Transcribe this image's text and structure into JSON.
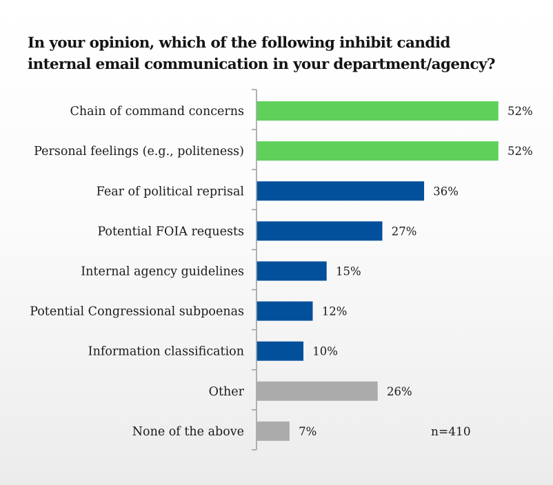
{
  "chart_data": {
    "type": "bar",
    "orientation": "horizontal",
    "title": "In your opinion, which of the following inhibit candid internal email communication in your department/agency?",
    "title_lines": [
      "In your opinion, which of the following inhibit candid",
      "internal email communication in your department/agency?"
    ],
    "categories": [
      "Chain of command concerns",
      "Personal feelings (e.g., politeness)",
      "Fear of political reprisal",
      "Potential FOIA requests",
      "Internal agency guidelines",
      "Potential Congressional subpoenas",
      "Information classification",
      "Other",
      "None of the above"
    ],
    "values": [
      52,
      52,
      36,
      27,
      15,
      12,
      10,
      26,
      7
    ],
    "value_labels": [
      "52%",
      "52%",
      "36%",
      "27%",
      "15%",
      "12%",
      "10%",
      "26%",
      "7%"
    ],
    "bar_groups": [
      "top",
      "top",
      "main",
      "main",
      "main",
      "main",
      "main",
      "other",
      "other"
    ],
    "unit": "%",
    "xlabel": "",
    "ylabel": "",
    "xlim": [
      0,
      60
    ],
    "grid": false,
    "legend": "none",
    "annotation": "n=410"
  },
  "colors": {
    "top": "#5fd05a",
    "main": "#02509b",
    "other": "#ababab",
    "axis": "#9a9a9a",
    "text": "#1a1a1a"
  }
}
